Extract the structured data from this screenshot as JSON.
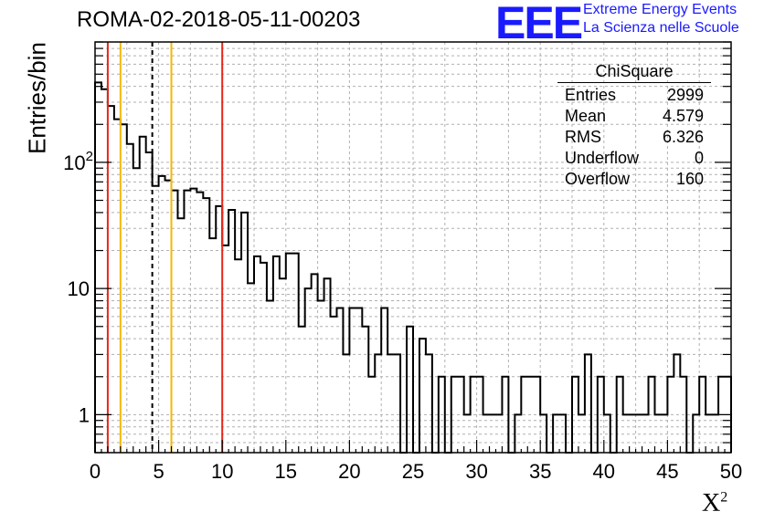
{
  "header": {
    "title": "ROMA-02-2018-05-11-00203",
    "logo_text": "EEE",
    "logo_line1": "Extreme Energy Events",
    "logo_line2": "La Scienza nelle Scuole"
  },
  "stats_box": {
    "name": "ChiSquare",
    "rows": [
      {
        "label": "Entries",
        "value": "2999"
      },
      {
        "label": "Mean",
        "value": "4.579"
      },
      {
        "label": "RMS",
        "value": "6.326"
      },
      {
        "label": "Underflow",
        "value": "0"
      },
      {
        "label": "Overflow",
        "value": "160"
      }
    ]
  },
  "chart_data": {
    "type": "histogram",
    "ylabel": "Entries/bin",
    "xlabel": "Χ",
    "xlabel_sup": "2",
    "xlim": [
      0,
      50
    ],
    "ylim": [
      0.5,
      900
    ],
    "yscale": "log",
    "bin_width": 0.5,
    "x_ticks": [
      "0",
      "5",
      "10",
      "15",
      "20",
      "25",
      "30",
      "35",
      "40",
      "45",
      "50"
    ],
    "y_ticks": [
      {
        "value": 1,
        "label": "1"
      },
      {
        "value": 10,
        "label": "10"
      },
      {
        "value": 100,
        "label": "10",
        "sup": "2"
      }
    ],
    "grid": true,
    "values": [
      430,
      380,
      280,
      220,
      200,
      140,
      90,
      160,
      120,
      65,
      78,
      72,
      60,
      36,
      60,
      62,
      58,
      52,
      25,
      45,
      22,
      42,
      17,
      40,
      11,
      18,
      16,
      8,
      18,
      12,
      19,
      19,
      5,
      10,
      13,
      8,
      12,
      6,
      7,
      3,
      7,
      7,
      5,
      2,
      3,
      7,
      3,
      3,
      0.4,
      5,
      0.4,
      4,
      3,
      0.4,
      2,
      0.4,
      2,
      2,
      1,
      2,
      2,
      1,
      1,
      1,
      2,
      0.4,
      1,
      2,
      2,
      2,
      1,
      0.4,
      1,
      1,
      0.4,
      2,
      1,
      3,
      0.4,
      2,
      1,
      0.4,
      2,
      1,
      1,
      1,
      1,
      2,
      1,
      1,
      2,
      3,
      2,
      0.4,
      1,
      2,
      1,
      1,
      2,
      2
    ],
    "vlines": [
      {
        "x": 1,
        "color": "#e8261b",
        "style": "solid"
      },
      {
        "x": 2,
        "color": "#f5b800",
        "style": "solid"
      },
      {
        "x": 4.5,
        "color": "#000000",
        "style": "dashed"
      },
      {
        "x": 6,
        "color": "#f5b800",
        "style": "solid"
      },
      {
        "x": 10,
        "color": "#e8261b",
        "style": "solid"
      }
    ]
  }
}
